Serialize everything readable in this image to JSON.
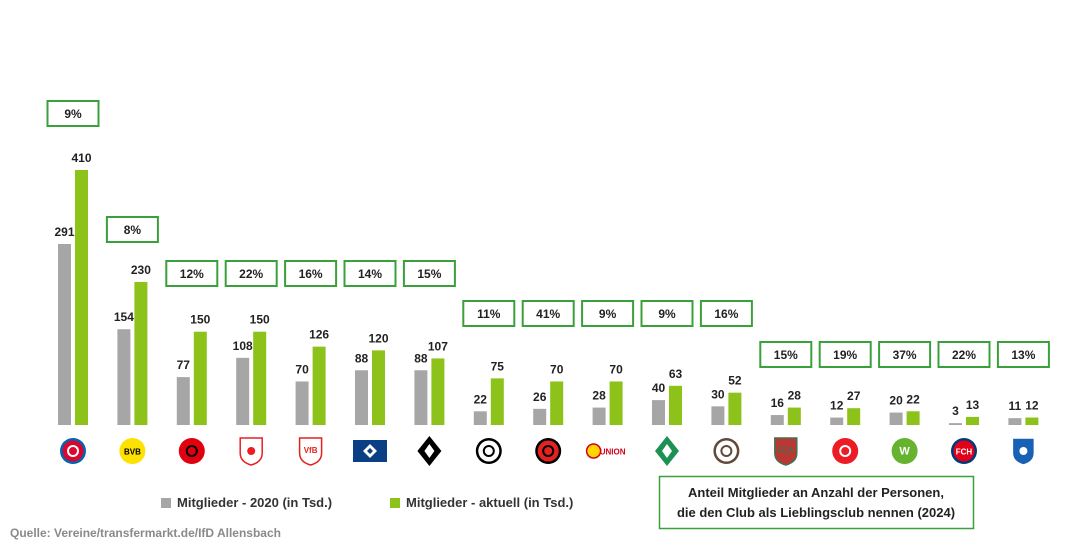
{
  "chart_data": {
    "type": "bar",
    "categories": [
      "FC Bayern München",
      "Borussia Dortmund",
      "Eintracht Frankfurt",
      "1. FC Köln",
      "VfB Stuttgart",
      "Hamburger SV",
      "Borussia Mönchengladbach",
      "SC Freiburg",
      "Bayer 04 Leverkusen",
      "1. FC Union Berlin",
      "SV Werder Bremen",
      "FC St. Pauli",
      "FC Augsburg",
      "1. FSV Mainz 05",
      "VfL Wolfsburg",
      "1. FC Heidenheim",
      "TSG Hoffenheim"
    ],
    "series": [
      {
        "name": "Mitglieder - 2020 (in Tsd.)",
        "color": "#a6a6a6",
        "values": [
          291,
          154,
          77,
          108,
          70,
          88,
          88,
          22,
          26,
          28,
          40,
          30,
          16,
          12,
          20,
          3,
          11
        ]
      },
      {
        "name": "Mitglieder - aktuell (in Tsd.)",
        "color": "#8cc21a",
        "values": [
          410,
          230,
          150,
          150,
          126,
          120,
          107,
          75,
          70,
          70,
          63,
          52,
          28,
          27,
          22,
          13,
          12
        ]
      }
    ],
    "share_labels": [
      "9%",
      "8%",
      "12%",
      "22%",
      "16%",
      "14%",
      "15%",
      "11%",
      "41%",
      "9%",
      "9%",
      "16%",
      "15%",
      "19%",
      "37%",
      "22%",
      "13%"
    ],
    "share_box_color": "#3aa03a",
    "ylim": [
      0,
      410
    ],
    "legend": [
      "Mitglieder - 2020 (in Tsd.)",
      "Mitglieder - aktuell (in Tsd.)"
    ],
    "legend_position": "bottom-left",
    "annotation": [
      "Anteil Mitglieder an Anzahl der Personen,",
      "die den Club als Lieblingsclub nennen (2024)"
    ],
    "source": "Quelle: Vereine/transfermarkt.de/IfD Allensbach"
  },
  "logos": [
    {
      "icon": "bayern-munich-logo",
      "shape": "circle",
      "bg": "#dc052d",
      "fg": "#ffffff",
      "ring": "#0066b2"
    },
    {
      "icon": "bvb-logo",
      "shape": "circle",
      "bg": "#fde100",
      "fg": "#000000",
      "text": "BVB"
    },
    {
      "icon": "eintracht-frankfurt-logo",
      "shape": "circle",
      "bg": "#e1000f",
      "fg": "#000000"
    },
    {
      "icon": "fc-koeln-logo",
      "shape": "shield",
      "bg": "#ffffff",
      "fg": "#ed1c24"
    },
    {
      "icon": "vfb-stuttgart-logo",
      "shape": "shield",
      "bg": "#ffffff",
      "fg": "#e32219",
      "text": "VfB"
    },
    {
      "icon": "hamburger-sv-logo",
      "shape": "rect",
      "bg": "#0a3f86",
      "fg": "#ffffff"
    },
    {
      "icon": "gladbach-logo",
      "shape": "diamond",
      "bg": "#000000",
      "fg": "#ffffff"
    },
    {
      "icon": "sc-freiburg-logo",
      "shape": "circle",
      "bg": "#ffffff",
      "fg": "#000000",
      "ring": "#000000"
    },
    {
      "icon": "bayer-leverkusen-logo",
      "shape": "circle",
      "bg": "#e32221",
      "fg": "#000000",
      "ring": "#000000"
    },
    {
      "icon": "union-berlin-logo",
      "shape": "union",
      "bg": "#ffffff",
      "fg": "#d4011d",
      "text": "UNION"
    },
    {
      "icon": "werder-bremen-logo",
      "shape": "diamond",
      "bg": "#1d9053",
      "fg": "#ffffff"
    },
    {
      "icon": "st-pauli-logo",
      "shape": "circle",
      "bg": "#ffffff",
      "fg": "#624839",
      "ring": "#624839"
    },
    {
      "icon": "fc-augsburg-logo",
      "shape": "shield",
      "bg": "#ba3733",
      "fg": "#46714d",
      "text": "FCA"
    },
    {
      "icon": "mainz-05-logo",
      "shape": "circle",
      "bg": "#ed1c24",
      "fg": "#ffffff"
    },
    {
      "icon": "vfl-wolfsburg-logo",
      "shape": "circle",
      "bg": "#65b32e",
      "fg": "#ffffff",
      "text": "W"
    },
    {
      "icon": "fc-heidenheim-logo",
      "shape": "circle",
      "bg": "#e2001a",
      "fg": "#ffffff",
      "ring": "#003b79",
      "text": "FCH"
    },
    {
      "icon": "hoffenheim-logo",
      "shape": "shield",
      "bg": "#1961b5",
      "fg": "#ffffff"
    }
  ]
}
